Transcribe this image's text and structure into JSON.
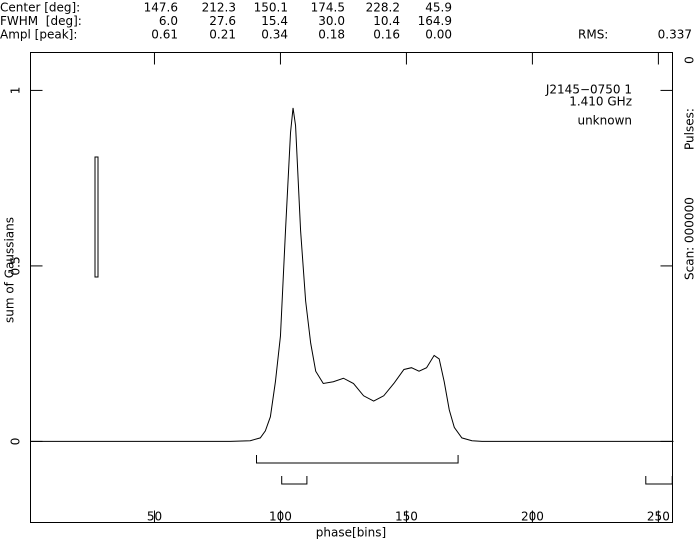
{
  "header": {
    "rows": [
      {
        "label": "Center [deg]:",
        "values": [
          "147.6",
          "212.3",
          "150.1",
          "174.5",
          "228.2",
          "45.9"
        ]
      },
      {
        "label": "FWHM  [deg]:",
        "values": [
          "6.0",
          "27.6",
          "15.4",
          "30.0",
          "10.4",
          "164.9"
        ]
      },
      {
        "label": "Ampl [peak]:",
        "values": [
          "0.61",
          "0.21",
          "0.34",
          "0.18",
          "0.16",
          "0.00"
        ]
      }
    ],
    "rms_label": "RMS:",
    "rms": "0.337"
  },
  "side": {
    "scan": "Scan: 000000",
    "pulses": "Pulses:",
    "pulse_count": "0"
  },
  "chart_data": {
    "type": "line",
    "annotations": [
      "J2145−0750 1",
      "1.410 GHz",
      "unknown"
    ],
    "x_label": "phase[bins]",
    "y_label": "sum of Gaussians",
    "x": [
      1,
      80,
      88,
      92,
      94,
      96,
      98,
      100,
      102,
      104,
      105,
      106,
      108,
      110,
      112,
      114,
      117,
      121,
      125,
      129,
      133,
      137,
      141,
      145,
      149,
      152,
      155,
      158,
      161,
      163,
      165,
      167,
      169,
      172,
      176,
      180,
      256
    ],
    "series": [
      {
        "color": "#000000",
        "values": [
          0,
          0,
          0.002,
          0.01,
          0.03,
          0.07,
          0.17,
          0.3,
          0.6,
          0.88,
          0.95,
          0.9,
          0.6,
          0.4,
          0.28,
          0.2,
          0.165,
          0.17,
          0.18,
          0.165,
          0.13,
          0.115,
          0.13,
          0.165,
          0.205,
          0.21,
          0.2,
          0.21,
          0.245,
          0.235,
          0.17,
          0.09,
          0.04,
          0.01,
          0.002,
          0,
          0
        ]
      }
    ],
    "windows": [
      [
        90.5,
        170.5
      ],
      [
        100.5,
        110.5
      ],
      [
        245,
        255.5
      ]
    ],
    "xlim": [
      0.8,
      255.6
    ],
    "ylim": [
      -0.231,
      1.108
    ],
    "xticks": [
      50,
      100,
      150,
      200,
      250
    ],
    "yticks": [
      0,
      0.5,
      1
    ]
  }
}
